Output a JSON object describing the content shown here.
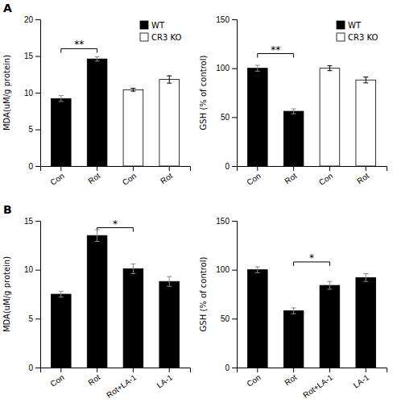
{
  "chart_data": [
    {
      "type": "bar",
      "title": "A",
      "categories": [
        "Con",
        "Rot",
        "Con",
        "Rot"
      ],
      "series": [
        {
          "name": "WT",
          "color": "black",
          "values": [
            9.2,
            14.6,
            null,
            null
          ],
          "errors": [
            0.4,
            0.3,
            null,
            null
          ]
        },
        {
          "name": "CR3 KO",
          "color": "white",
          "values": [
            null,
            null,
            10.4,
            11.8
          ],
          "errors": [
            null,
            null,
            0.2,
            0.5
          ]
        }
      ],
      "ylabel": "MDA(uM/g protein)",
      "ylim": [
        0,
        20
      ],
      "yticks": [
        0,
        5,
        10,
        15,
        20
      ],
      "annotations": [
        {
          "text": "**",
          "x": [
            0,
            1
          ],
          "y": 16.0
        }
      ],
      "legend": "upper right",
      "grid": false
    },
    {
      "type": "bar",
      "categories": [
        "Con",
        "Rot",
        "Con",
        "Rot"
      ],
      "series": [
        {
          "name": "WT",
          "color": "black",
          "values": [
            100,
            56,
            null,
            null
          ],
          "errors": [
            3,
            2.5,
            null,
            null
          ]
        },
        {
          "name": "CR3 KO",
          "color": "white",
          "values": [
            null,
            null,
            100,
            88
          ],
          "errors": [
            null,
            null,
            2.5,
            3
          ]
        }
      ],
      "ylabel": "GSH (% of control)",
      "ylim": [
        0,
        150
      ],
      "yticks": [
        0,
        50,
        100,
        150
      ],
      "annotations": [
        {
          "text": "**",
          "x": [
            0,
            1
          ],
          "y": 115
        }
      ],
      "legend": "upper right",
      "grid": false
    },
    {
      "type": "bar",
      "title": "B",
      "categories": [
        "Con",
        "Rot",
        "Rot+LA-1",
        "LA-1"
      ],
      "values": [
        7.5,
        13.5,
        10.1,
        8.8
      ],
      "errors": [
        0.3,
        0.6,
        0.5,
        0.5
      ],
      "color": "black",
      "ylabel": "MDA(uM/g protein)",
      "ylim": [
        0,
        15
      ],
      "yticks": [
        0,
        5,
        10,
        15
      ],
      "annotations": [
        {
          "text": "*",
          "x": [
            1,
            2
          ],
          "y": 14.3
        }
      ],
      "grid": false
    },
    {
      "type": "bar",
      "categories": [
        "Con",
        "Rot",
        "Rot+LA-1",
        "LA-1"
      ],
      "values": [
        100,
        58,
        84,
        92
      ],
      "errors": [
        3,
        3,
        4,
        4
      ],
      "color": "black",
      "ylabel": "GSH (% of control)",
      "ylim": [
        0,
        150
      ],
      "yticks": [
        0,
        50,
        100,
        150
      ],
      "annotations": [
        {
          "text": "*",
          "x": [
            1,
            2
          ],
          "y": 108
        }
      ],
      "grid": false
    }
  ]
}
